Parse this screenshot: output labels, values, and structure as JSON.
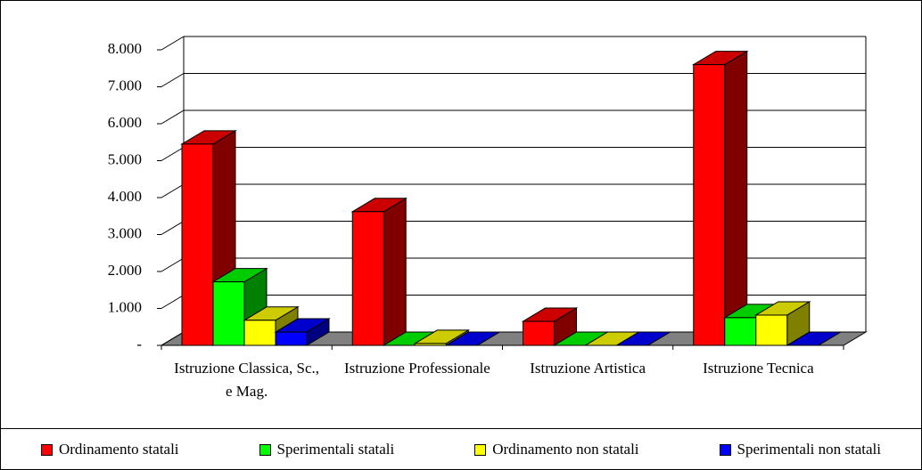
{
  "chart_data": {
    "type": "bar3d",
    "categories": [
      "Istruzione Classica, Sc., e Mag.",
      "Istruzione Professionale",
      "Istruzione Artistica",
      "Istruzione Tecnica"
    ],
    "series": [
      {
        "name": "Ordinamento statali",
        "color": "#ff0000",
        "values": [
          5450,
          3620,
          650,
          7600
        ]
      },
      {
        "name": "Sperimentali statali",
        "color": "#00ff00",
        "values": [
          1720,
          0,
          0,
          750
        ]
      },
      {
        "name": "Ordinamento non statali",
        "color": "#ffff00",
        "values": [
          680,
          50,
          0,
          820
        ]
      },
      {
        "name": "Sperimentali non statali",
        "color": "#0000ff",
        "values": [
          360,
          0,
          0,
          0
        ]
      }
    ],
    "ylim": [
      0,
      8000
    ],
    "yticks": [
      {
        "value": 0,
        "label": "-"
      },
      {
        "value": 1000,
        "label": "1.000"
      },
      {
        "value": 2000,
        "label": "2.000"
      },
      {
        "value": 3000,
        "label": "3.000"
      },
      {
        "value": 4000,
        "label": "4.000"
      },
      {
        "value": 5000,
        "label": "5.000"
      },
      {
        "value": 6000,
        "label": "6.000"
      },
      {
        "value": 7000,
        "label": "7.000"
      },
      {
        "value": 8000,
        "label": "8.000"
      }
    ],
    "grid": true
  }
}
